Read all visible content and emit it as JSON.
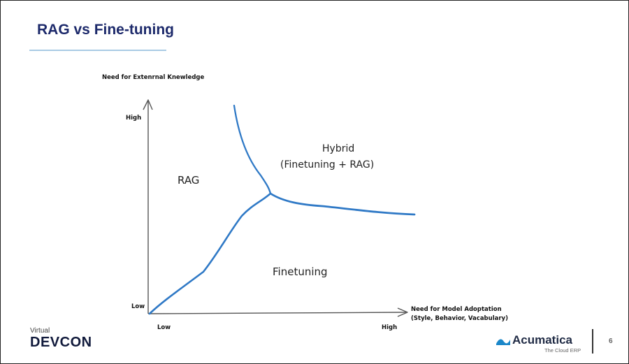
{
  "slide": {
    "title": "RAG vs Fine-tuning",
    "page_number": "6"
  },
  "diagram": {
    "y_axis": {
      "title": "Need for Extenrnal Knewledge",
      "high": "High",
      "low": "Low"
    },
    "x_axis": {
      "title_line1": "Need for Model Adoptation",
      "title_line2": "(Style, Behavior, Vacabulary)",
      "low": "Low",
      "high": "High"
    },
    "regions": {
      "rag": "RAG",
      "hybrid_line1": "Hybrid",
      "hybrid_line2": "(Finetuning + RAG)",
      "finetuning": "Finetuning"
    },
    "curve_color": "#2f79c6"
  },
  "footer": {
    "event_small": "Virtual",
    "event_main": "DEVCON",
    "brand_name": "Acumatica",
    "brand_tagline": "The Cloud ERP",
    "brand_color": "#1b87c9"
  }
}
